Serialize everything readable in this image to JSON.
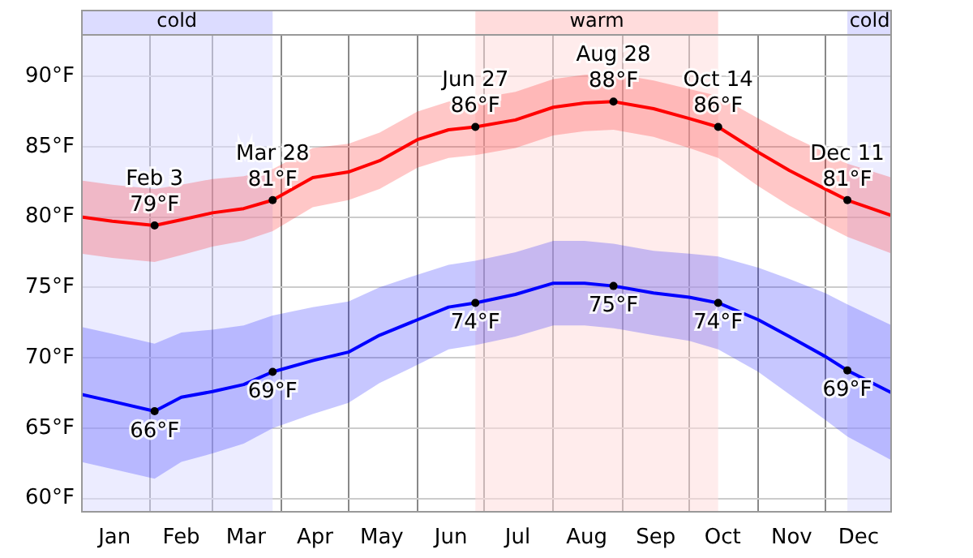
{
  "chart_data": {
    "type": "line",
    "x": [
      "--01-01",
      "--01-15",
      "--02-03",
      "--02-15",
      "--03-01",
      "--03-15",
      "--03-28",
      "--04-15",
      "--05-01",
      "--05-15",
      "--06-01",
      "--06-15",
      "--06-27",
      "--07-15",
      "--08-01",
      "--08-15",
      "--08-28",
      "--09-15",
      "--10-01",
      "--10-14",
      "--11-01",
      "--11-15",
      "--12-01",
      "--12-11",
      "--12-31"
    ],
    "series": [
      {
        "type": "line",
        "color": "#ff0000",
        "values": [
          80.0,
          79.7,
          79.4,
          79.8,
          80.3,
          80.6,
          81.2,
          82.8,
          83.2,
          84.0,
          85.5,
          86.2,
          86.4,
          86.9,
          87.8,
          88.1,
          88.2,
          87.7,
          87.0,
          86.4,
          84.6,
          83.3,
          82.0,
          81.2,
          80.1
        ],
        "lower": [
          77.4,
          77.1,
          76.8,
          77.3,
          77.9,
          78.3,
          79.0,
          80.7,
          81.2,
          82.0,
          83.5,
          84.2,
          84.4,
          84.9,
          85.8,
          86.1,
          86.2,
          85.7,
          84.9,
          84.2,
          82.2,
          80.8,
          79.4,
          78.6,
          77.4
        ],
        "upper": [
          82.6,
          82.3,
          82.0,
          82.3,
          82.7,
          82.9,
          83.4,
          84.9,
          85.2,
          86.0,
          87.5,
          88.2,
          88.4,
          88.9,
          89.8,
          90.1,
          90.2,
          89.7,
          89.1,
          88.6,
          87.0,
          85.8,
          84.6,
          83.8,
          82.8
        ]
      },
      {
        "type": "line",
        "color": "#0000ff",
        "values": [
          67.4,
          66.9,
          66.2,
          67.2,
          67.6,
          68.1,
          69.0,
          69.8,
          70.4,
          71.6,
          72.7,
          73.6,
          73.9,
          74.5,
          75.3,
          75.3,
          75.1,
          74.6,
          74.3,
          73.9,
          72.7,
          71.5,
          70.1,
          69.1,
          67.5
        ],
        "lower": [
          62.6,
          62.1,
          61.4,
          62.6,
          63.2,
          63.9,
          65.0,
          66.0,
          66.8,
          68.2,
          69.5,
          70.6,
          70.9,
          71.5,
          72.3,
          72.3,
          72.1,
          71.6,
          71.2,
          70.6,
          69.0,
          67.4,
          65.6,
          64.4,
          62.7
        ],
        "upper": [
          72.2,
          71.7,
          71.0,
          71.8,
          72.0,
          72.3,
          73.0,
          73.6,
          74.0,
          75.0,
          75.9,
          76.6,
          76.9,
          77.5,
          78.3,
          78.3,
          78.1,
          77.6,
          77.4,
          77.2,
          76.4,
          75.6,
          74.6,
          73.8,
          72.3
        ]
      }
    ],
    "xlim": [
      "--01-01",
      "--12-31"
    ],
    "xticks": [
      {
        "value": "--01-16",
        "label": "Jan"
      },
      {
        "value": "--02-01",
        "label": null
      },
      {
        "value": "--02-15",
        "label": "Feb"
      },
      {
        "value": "--03-01",
        "label": null
      },
      {
        "value": "--03-16",
        "label": "Mar"
      },
      {
        "value": "--04-01",
        "label": null
      },
      {
        "value": "--04-16",
        "label": "Apr"
      },
      {
        "value": "--05-01",
        "label": null
      },
      {
        "value": "--05-16",
        "label": "May"
      },
      {
        "value": "--06-01",
        "label": null
      },
      {
        "value": "--06-16",
        "label": "Jun"
      },
      {
        "value": "--07-01",
        "label": null
      },
      {
        "value": "--07-16",
        "label": "Jul"
      },
      {
        "value": "--08-01",
        "label": null
      },
      {
        "value": "--08-16",
        "label": "Aug"
      },
      {
        "value": "--09-01",
        "label": null
      },
      {
        "value": "--09-16",
        "label": "Sep"
      },
      {
        "value": "--10-01",
        "label": null
      },
      {
        "value": "--10-16",
        "label": "Oct"
      },
      {
        "value": "--11-01",
        "label": null
      },
      {
        "value": "--11-16",
        "label": "Nov"
      },
      {
        "value": "--12-01",
        "label": null
      },
      {
        "value": "--12-16",
        "label": "Dec"
      }
    ],
    "ylim": [
      59,
      93
    ],
    "yticks": [
      {
        "value": 60,
        "label": "60°F"
      },
      {
        "value": 65,
        "label": "65°F"
      },
      {
        "value": 70,
        "label": "70°F"
      },
      {
        "value": 75,
        "label": "75°F"
      },
      {
        "value": 80,
        "label": "80°F"
      },
      {
        "value": 85,
        "label": "85°F"
      },
      {
        "value": 90,
        "label": "90°F"
      }
    ],
    "grid": true,
    "bands": [
      {
        "axis": "x",
        "from": "--01-01",
        "to": "--03-28",
        "label": "cold",
        "color": "#dcdcff"
      },
      {
        "axis": "x",
        "from": "--06-27",
        "to": "--10-14",
        "label": "warm",
        "color": "#ffdcdc"
      },
      {
        "axis": "x",
        "from": "--12-11",
        "to": "--12-31",
        "label": "cold",
        "color": "#dcdcff"
      }
    ],
    "annotations": [
      {
        "text": "Feb 3\n79°F",
        "x": "--02-03",
        "y": 79.4
      },
      {
        "text": "Mar 28\n81°F",
        "x": "--03-28",
        "y": 81.2
      },
      {
        "text": "Jun 27\n86°F",
        "x": "--06-27",
        "y": 86.4
      },
      {
        "text": "Aug 28\n88°F",
        "x": "--08-28",
        "y": 88.2
      },
      {
        "text": "Oct 14\n86°F",
        "x": "--10-14",
        "y": 86.4
      },
      {
        "text": "Dec 11\n81°F",
        "x": "--12-11",
        "y": 81.2
      },
      {
        "text": "66°F",
        "x": "--02-03",
        "y": 66.2
      },
      {
        "text": "69°F",
        "x": "--03-28",
        "y": 69.0
      },
      {
        "text": "74°F",
        "x": "--06-27",
        "y": 73.9
      },
      {
        "text": "75°F",
        "x": "--08-28",
        "y": 75.1
      },
      {
        "text": "74°F",
        "x": "--10-14",
        "y": 73.9
      },
      {
        "text": "69°F",
        "x": "--12-11",
        "y": 69.1
      }
    ]
  }
}
